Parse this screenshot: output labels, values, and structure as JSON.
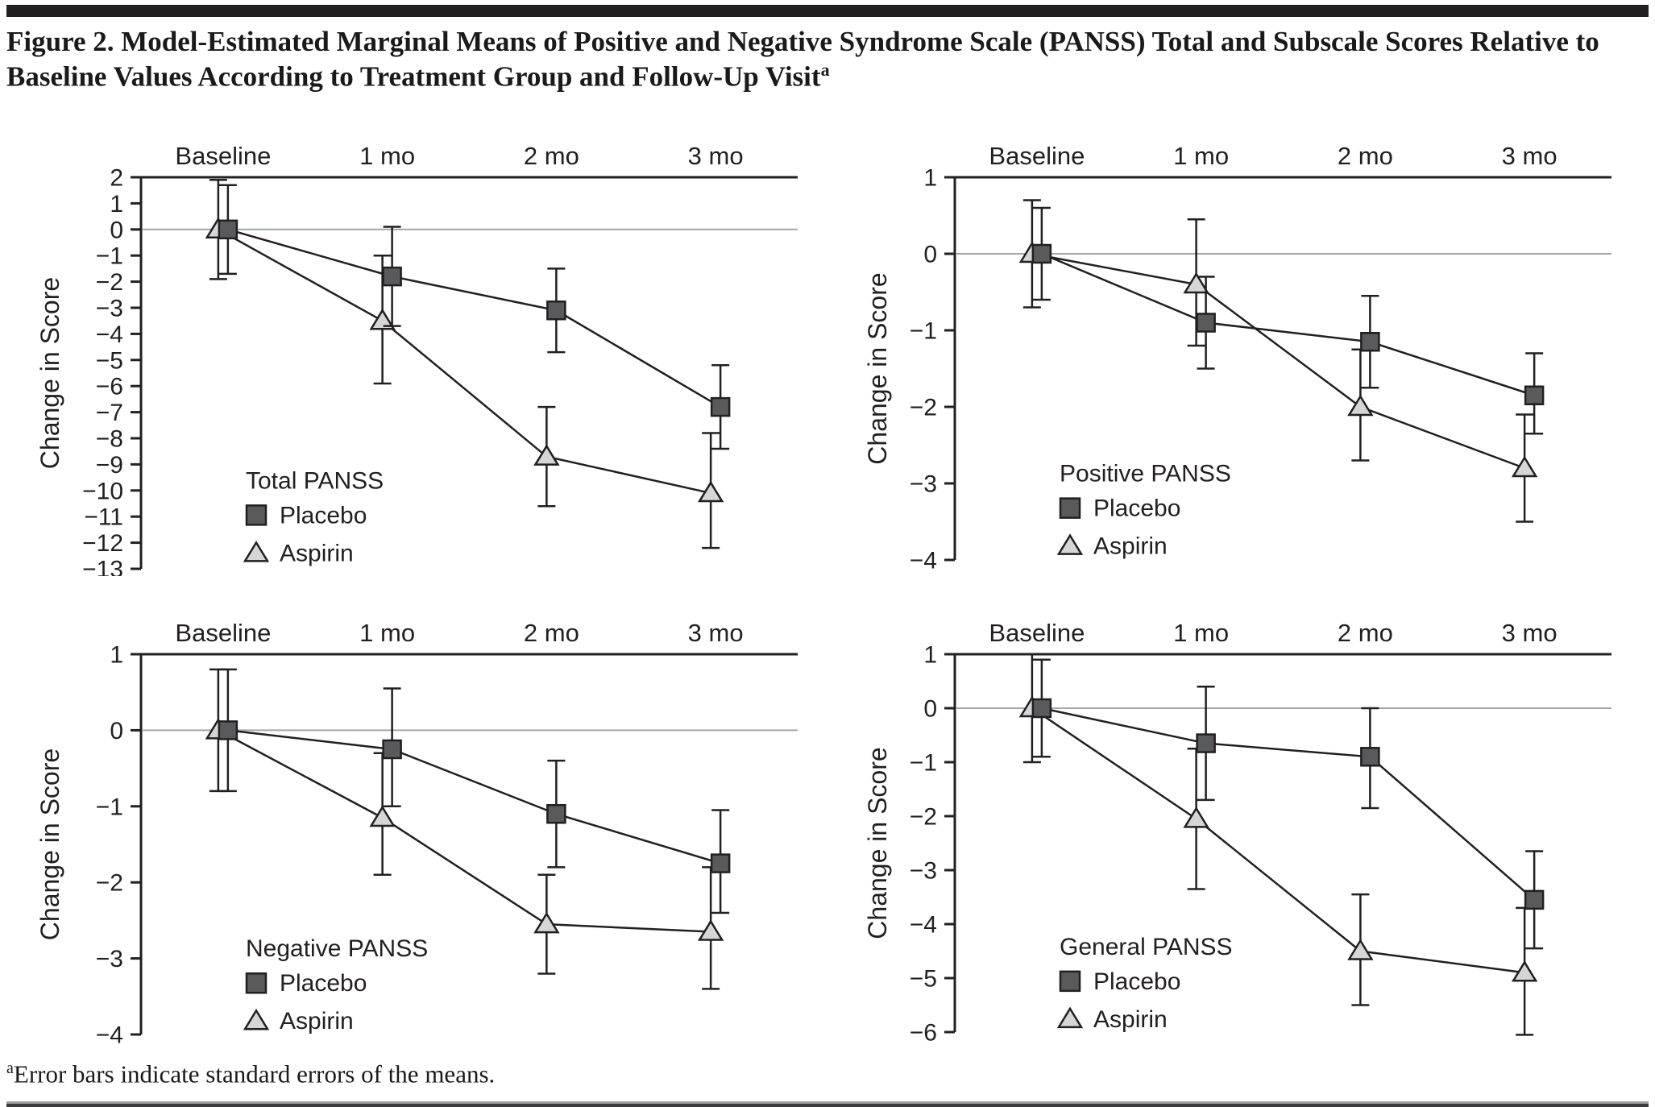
{
  "figure": {
    "title": "Figure 2. Model-Estimated Marginal Means of Positive and Negative Syndrome Scale (PANSS) Total and Subscale Scores Relative to Baseline Values According to Treatment Group and Follow-Up Visit",
    "title_superscript": "a",
    "footnote_superscript": "a",
    "footnote": "Error bars indicate standard errors of the means."
  },
  "colors": {
    "stroke": "#231f20",
    "placebo_fill": "#595a5c",
    "aspirin_fill": "#d5d6d8",
    "zero_line": "#a4a6a9"
  },
  "chart_data": [
    {
      "type": "line",
      "title": "Total PANSS",
      "ylabel": "Change in Score",
      "categories": [
        "Baseline",
        "1 mo",
        "2 mo",
        "3 mo"
      ],
      "ylim": [
        2,
        -13
      ],
      "ytick_step": 1,
      "grid": false,
      "zero_line": true,
      "legend_position": "lower-left",
      "series": [
        {
          "name": "Placebo",
          "marker": "square",
          "values": [
            0,
            -1.8,
            -3.1,
            -6.8
          ],
          "err_hi": [
            1.7,
            0.1,
            -1.5,
            -5.2
          ],
          "err_lo": [
            -1.7,
            -3.7,
            -4.7,
            -8.4
          ]
        },
        {
          "name": "Aspirin",
          "marker": "triangle",
          "values": [
            0,
            -3.5,
            -8.7,
            -10.1
          ],
          "err_hi": [
            1.9,
            -1.0,
            -6.8,
            -7.8
          ],
          "err_lo": [
            -1.9,
            -5.9,
            -10.6,
            -12.2
          ]
        }
      ]
    },
    {
      "type": "line",
      "title": "Positive PANSS",
      "ylabel": "Change in Score",
      "categories": [
        "Baseline",
        "1 mo",
        "2 mo",
        "3 mo"
      ],
      "ylim": [
        1,
        -4
      ],
      "ytick_step": 1,
      "grid": false,
      "zero_line": true,
      "legend_position": "lower-left",
      "series": [
        {
          "name": "Placebo",
          "marker": "square",
          "values": [
            0,
            -0.9,
            -1.15,
            -1.85
          ],
          "err_hi": [
            0.6,
            -0.3,
            -0.55,
            -1.3
          ],
          "err_lo": [
            -0.6,
            -1.5,
            -1.75,
            -2.35
          ]
        },
        {
          "name": "Aspirin",
          "marker": "triangle",
          "values": [
            0,
            -0.4,
            -2.0,
            -2.8
          ],
          "err_hi": [
            0.7,
            0.45,
            -1.25,
            -2.1
          ],
          "err_lo": [
            -0.7,
            -1.2,
            -2.7,
            -3.5
          ]
        }
      ]
    },
    {
      "type": "line",
      "title": "Negative PANSS",
      "ylabel": "Change in Score",
      "categories": [
        "Baseline",
        "1 mo",
        "2 mo",
        "3 mo"
      ],
      "ylim": [
        1,
        -4
      ],
      "ytick_step": 1,
      "grid": false,
      "zero_line": true,
      "legend_position": "lower-left",
      "series": [
        {
          "name": "Placebo",
          "marker": "square",
          "values": [
            0,
            -0.25,
            -1.1,
            -1.75
          ],
          "err_hi": [
            0.8,
            0.55,
            -0.4,
            -1.05
          ],
          "err_lo": [
            -0.8,
            -1.0,
            -1.8,
            -2.4
          ]
        },
        {
          "name": "Aspirin",
          "marker": "triangle",
          "values": [
            0,
            -1.15,
            -2.55,
            -2.65
          ],
          "err_hi": [
            0.8,
            -0.3,
            -1.9,
            -1.8
          ],
          "err_lo": [
            -0.8,
            -1.9,
            -3.2,
            -3.4
          ]
        }
      ]
    },
    {
      "type": "line",
      "title": "General PANSS",
      "ylabel": "Change in Score",
      "categories": [
        "Baseline",
        "1 mo",
        "2 mo",
        "3 mo"
      ],
      "ylim": [
        1,
        -6
      ],
      "ytick_step": 1,
      "grid": false,
      "zero_line": true,
      "legend_position": "lower-left",
      "series": [
        {
          "name": "Placebo",
          "marker": "square",
          "values": [
            0,
            -0.65,
            -0.9,
            -3.55
          ],
          "err_hi": [
            0.9,
            0.4,
            0,
            -2.65
          ],
          "err_lo": [
            -0.9,
            -1.7,
            -1.85,
            -4.45
          ]
        },
        {
          "name": "Aspirin",
          "marker": "triangle",
          "values": [
            0,
            -2.05,
            -4.5,
            -4.9
          ],
          "err_hi": [
            1.0,
            -0.75,
            -3.45,
            -3.7
          ],
          "err_lo": [
            -1.0,
            -3.35,
            -5.5,
            -6.05
          ]
        }
      ]
    }
  ]
}
